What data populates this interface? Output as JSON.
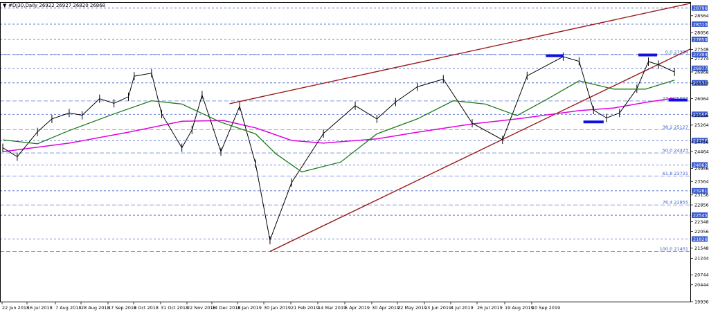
{
  "header": {
    "triangle": "▼",
    "text": "#DJ30,Daily  26922 26927 26820 26868"
  },
  "chart_data": {
    "type": "line",
    "symbol": "#DJ30",
    "timeframe": "Daily",
    "ohlc": {
      "open": 26922,
      "high": 26927,
      "low": 26820,
      "close": 26868
    },
    "ylim": [
      19936,
      28956
    ],
    "y_ticks": [
      {
        "value": 28564,
        "label": "28564"
      },
      {
        "value": 28056,
        "label": "28056"
      },
      {
        "value": 27548,
        "label": "27548"
      },
      {
        "value": 27274,
        "label": "27274"
      },
      {
        "value": 26868,
        "label": "26868"
      },
      {
        "value": 26530,
        "label": "26530"
      },
      {
        "value": 26064,
        "label": "26064"
      },
      {
        "value": 25556,
        "label": "25556"
      },
      {
        "value": 25264,
        "label": "25264"
      },
      {
        "value": 24756,
        "label": "24756"
      },
      {
        "value": 24464,
        "label": "24464"
      },
      {
        "value": 23956,
        "label": "23956"
      },
      {
        "value": 23564,
        "label": "23564"
      },
      {
        "value": 23156,
        "label": "23156"
      },
      {
        "value": 22856,
        "label": "22856"
      },
      {
        "value": 22348,
        "label": "22348"
      },
      {
        "value": 22056,
        "label": "22056"
      },
      {
        "value": 21548,
        "label": "21548"
      },
      {
        "value": 21244,
        "label": "21244"
      },
      {
        "value": 20744,
        "label": "20744"
      },
      {
        "value": 20444,
        "label": "20444"
      },
      {
        "value": 19936,
        "label": "19936"
      }
    ],
    "x_ticks": [
      "22 Jun 2018",
      "16 Jul 2018",
      "7 Aug 2018",
      "28 Aug 2018",
      "17 Sep 2018",
      "9 Oct 2018",
      "31 Oct 2018",
      "22 Nov 2018",
      "14 Dec 2018",
      "8 Jan 2019",
      "30 Jan 2019",
      "21 Feb 2019",
      "14 Mar 2019",
      "5 Apr 2019",
      "30 Apr 2019",
      "22 May 2019",
      "13 Jun 2019",
      "4 Jul 2019",
      "26 Jul 2019",
      "19 Aug 2019",
      "10 Sep 2019"
    ],
    "horizontal_levels": [
      {
        "value": 28796,
        "label": "28796",
        "style": "dash",
        "color": "#3a5bcc"
      },
      {
        "value": 28310,
        "label": "28310",
        "style": "dash",
        "color": "#3a5bcc"
      },
      {
        "value": 27850,
        "label": "27850",
        "style": "dash",
        "color": "#3a5bcc"
      },
      {
        "value": 27394,
        "label": "27394",
        "style": "dash",
        "color": "#3a5bcc"
      },
      {
        "value": 26977,
        "label": "26977",
        "style": "dash",
        "color": "#3a5bcc"
      },
      {
        "value": 26538,
        "label": "26538",
        "style": "dash",
        "color": "#3a5bcc"
      },
      {
        "value": 25589,
        "label": "25589",
        "style": "dash",
        "color": "#3a5bcc"
      },
      {
        "value": 24796,
        "label": "24796",
        "style": "dash",
        "color": "#3a5bcc"
      },
      {
        "value": 24062,
        "label": "24062",
        "style": "dash",
        "color": "#3a5bcc"
      },
      {
        "value": 23281,
        "label": "23281",
        "style": "dash",
        "color": "#3a5bcc"
      },
      {
        "value": 22545,
        "label": "22545",
        "style": "dash",
        "color": "#3a5bcc"
      },
      {
        "value": 21826,
        "label": "21826",
        "style": "dash",
        "color": "#3a5bcc"
      }
    ],
    "fibonacci": [
      {
        "ratio": "0.0",
        "value": 27394,
        "label": "0.0 27394"
      },
      {
        "ratio": "23.6",
        "value": 25993,
        "label": "23.6 25993"
      },
      {
        "ratio": "38.2",
        "value": 25127,
        "label": "38.2 25127"
      },
      {
        "ratio": "50.0",
        "value": 24423,
        "label": "50.0 24423"
      },
      {
        "ratio": "61.8",
        "value": 23721,
        "label": "61.8 23721"
      },
      {
        "ratio": "76.4",
        "value": 22855,
        "label": "76.4 22855"
      },
      {
        "ratio": "100.0",
        "value": 21451,
        "label": "100.0 21451"
      }
    ],
    "colors": {
      "candles": "#000000",
      "ma_fast": "#1b7a1b",
      "ma_slow": "#e000e0",
      "trendlines": "#9b1b1b",
      "markers": "#1010e0",
      "levels": "#3a5bcc",
      "current_price_box": "#3a5bcc"
    },
    "price_series": [
      {
        "x": "2018-06-22",
        "y": 24580
      },
      {
        "x": "2018-07-02",
        "y": 24310
      },
      {
        "x": "2018-07-16",
        "y": 25060
      },
      {
        "x": "2018-07-26",
        "y": 25450
      },
      {
        "x": "2018-08-07",
        "y": 25630
      },
      {
        "x": "2018-08-16",
        "y": 25560
      },
      {
        "x": "2018-08-28",
        "y": 26060
      },
      {
        "x": "2018-09-07",
        "y": 25920
      },
      {
        "x": "2018-09-17",
        "y": 26120
      },
      {
        "x": "2018-09-21",
        "y": 26740
      },
      {
        "x": "2018-10-03",
        "y": 26830
      },
      {
        "x": "2018-10-10",
        "y": 25600
      },
      {
        "x": "2018-10-24",
        "y": 24580
      },
      {
        "x": "2018-10-31",
        "y": 25120
      },
      {
        "x": "2018-11-07",
        "y": 26170
      },
      {
        "x": "2018-11-20",
        "y": 24460
      },
      {
        "x": "2018-12-03",
        "y": 25830
      },
      {
        "x": "2018-12-14",
        "y": 24100
      },
      {
        "x": "2018-12-24",
        "y": 21790
      },
      {
        "x": "2019-01-08",
        "y": 23530
      },
      {
        "x": "2019-01-30",
        "y": 25010
      },
      {
        "x": "2019-02-21",
        "y": 25850
      },
      {
        "x": "2019-03-08",
        "y": 25450
      },
      {
        "x": "2019-03-21",
        "y": 25960
      },
      {
        "x": "2019-04-05",
        "y": 26420
      },
      {
        "x": "2019-04-23",
        "y": 26650
      },
      {
        "x": "2019-05-13",
        "y": 25320
      },
      {
        "x": "2019-06-03",
        "y": 24820
      },
      {
        "x": "2019-06-20",
        "y": 26750
      },
      {
        "x": "2019-07-15",
        "y": 27330
      },
      {
        "x": "2019-07-26",
        "y": 27190
      },
      {
        "x": "2019-08-05",
        "y": 25720
      },
      {
        "x": "2019-08-14",
        "y": 25480
      },
      {
        "x": "2019-08-23",
        "y": 25630
      },
      {
        "x": "2019-09-04",
        "y": 26360
      },
      {
        "x": "2019-09-12",
        "y": 27180
      },
      {
        "x": "2019-09-19",
        "y": 27090
      },
      {
        "x": "2019-09-30",
        "y": 26868
      }
    ],
    "ma_fast_series": [
      {
        "x": "2018-06-22",
        "y": 24820
      },
      {
        "x": "2018-07-16",
        "y": 24700
      },
      {
        "x": "2018-08-07",
        "y": 25100
      },
      {
        "x": "2018-09-07",
        "y": 25600
      },
      {
        "x": "2018-10-03",
        "y": 26000
      },
      {
        "x": "2018-10-24",
        "y": 25900
      },
      {
        "x": "2018-11-20",
        "y": 25350
      },
      {
        "x": "2018-12-14",
        "y": 25000
      },
      {
        "x": "2018-12-28",
        "y": 24400
      },
      {
        "x": "2019-01-15",
        "y": 23850
      },
      {
        "x": "2019-02-11",
        "y": 24150
      },
      {
        "x": "2019-03-08",
        "y": 25000
      },
      {
        "x": "2019-04-05",
        "y": 25450
      },
      {
        "x": "2019-04-30",
        "y": 26000
      },
      {
        "x": "2019-05-22",
        "y": 25900
      },
      {
        "x": "2019-06-13",
        "y": 25550
      },
      {
        "x": "2019-07-04",
        "y": 26050
      },
      {
        "x": "2019-07-26",
        "y": 26600
      },
      {
        "x": "2019-08-19",
        "y": 26350
      },
      {
        "x": "2019-09-10",
        "y": 26350
      },
      {
        "x": "2019-09-30",
        "y": 26620
      }
    ],
    "ma_slow_series": [
      {
        "x": "2018-06-22",
        "y": 24460
      },
      {
        "x": "2018-08-07",
        "y": 24720
      },
      {
        "x": "2018-09-17",
        "y": 25050
      },
      {
        "x": "2018-10-24",
        "y": 25380
      },
      {
        "x": "2018-11-22",
        "y": 25400
      },
      {
        "x": "2018-12-14",
        "y": 25180
      },
      {
        "x": "2019-01-08",
        "y": 24800
      },
      {
        "x": "2019-01-30",
        "y": 24720
      },
      {
        "x": "2019-03-08",
        "y": 24850
      },
      {
        "x": "2019-04-05",
        "y": 25050
      },
      {
        "x": "2019-05-13",
        "y": 25300
      },
      {
        "x": "2019-06-13",
        "y": 25450
      },
      {
        "x": "2019-07-26",
        "y": 25700
      },
      {
        "x": "2019-08-19",
        "y": 25780
      },
      {
        "x": "2019-09-10",
        "y": 25950
      },
      {
        "x": "2019-09-30",
        "y": 26080
      }
    ],
    "trendlines": [
      {
        "from": {
          "x": "2018-12-24",
          "y": 21451
        },
        "to": {
          "x": "2019-10-11",
          "y": 27560
        }
      },
      {
        "from": {
          "x": "2018-11-26",
          "y": 25910
        },
        "to": {
          "x": "2019-10-11",
          "y": 28940
        }
      }
    ],
    "markers": [
      {
        "x_from": "2019-07-03",
        "x_to": "2019-07-15",
        "y": 27360
      },
      {
        "x_from": "2019-07-29",
        "x_to": "2019-08-12",
        "y": 25360
      },
      {
        "x_from": "2019-09-05",
        "x_to": "2019-09-18",
        "y": 27380
      },
      {
        "x_from": "2019-09-26",
        "x_to": "2019-10-09",
        "y": 26020
      }
    ]
  }
}
